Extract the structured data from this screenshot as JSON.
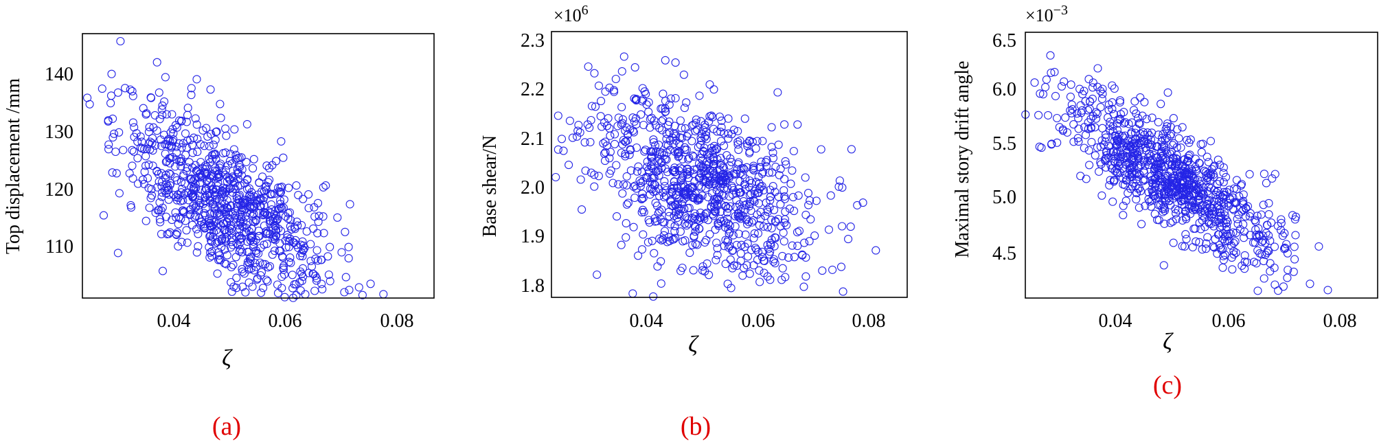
{
  "figure": {
    "background": "#ffffff"
  },
  "chart_data": [
    {
      "type": "scatter",
      "panel_label": "(a)",
      "xlabel": "ζ",
      "ylabel": "Top displacement /mm",
      "multiplier": "",
      "xlim": [
        0.024,
        0.087
      ],
      "ylim": [
        101,
        147
      ],
      "xticks": [
        0.04,
        0.06,
        0.08
      ],
      "xtick_labels": [
        "0.04",
        "0.06",
        "0.08"
      ],
      "yticks": [
        110,
        120,
        130,
        140
      ],
      "ytick_labels": [
        "110",
        "120",
        "130",
        "140"
      ],
      "marker_color": "#2424e6",
      "label_color": "#e00000",
      "center_x": 0.05,
      "slope": -600,
      "trend_point": 117,
      "noise_sd": 6.3,
      "point_count": 900
    },
    {
      "type": "scatter",
      "panel_label": "(b)",
      "xlabel": "ζ",
      "ylabel": "Base shear/N",
      "multiplier": "×10",
      "multiplier_exp": "6",
      "xlim": [
        0.024,
        0.087
      ],
      "ylim": [
        1.77,
        2.31
      ],
      "xticks": [
        0.04,
        0.06,
        0.08
      ],
      "xtick_labels": [
        "0.04",
        "0.06",
        "0.08"
      ],
      "yticks": [
        1.8,
        1.9,
        2.0,
        2.1,
        2.2,
        2.3
      ],
      "ytick_labels": [
        "1.8",
        "1.9",
        "2.0",
        "2.1",
        "2.2",
        "2.3"
      ],
      "marker_color": "#2424e6",
      "label_color": "#e00000",
      "center_x": 0.05,
      "slope": -4,
      "trend_point": 2.0,
      "noise_sd": 0.085,
      "point_count": 900
    },
    {
      "type": "scatter",
      "panel_label": "(c)",
      "xlabel": "ζ",
      "ylabel": "Maximal story drift angle",
      "multiplier": "×10",
      "multiplier_exp": "−3",
      "xlim": [
        0.024,
        0.087
      ],
      "ylim": [
        4.3,
        6.53
      ],
      "xticks": [
        0.04,
        0.06,
        0.08
      ],
      "xtick_labels": [
        "0.04",
        "0.06",
        "0.08"
      ],
      "yticks": [
        4.5,
        5.0,
        5.5,
        6.0,
        6.5
      ],
      "ytick_labels": [
        "4.5",
        "5.0",
        "5.5",
        "6.0",
        "6.5"
      ],
      "marker_color": "#2424e6",
      "label_color": "#e00000",
      "center_x": 0.05,
      "slope": -28,
      "trend_point": 5.3,
      "noise_sd": 0.22,
      "point_count": 900
    }
  ]
}
